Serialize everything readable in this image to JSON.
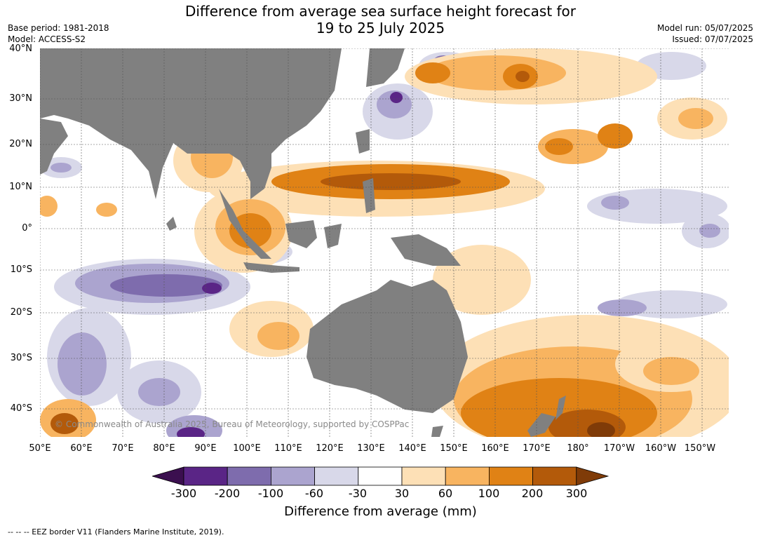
{
  "title": {
    "line1": "Difference from average sea surface height forecast for",
    "line2": "19 to 25 July 2025"
  },
  "meta_left": {
    "base_period": "Base period: 1981-2018",
    "model": "Model: ACCESS-S2"
  },
  "meta_right": {
    "model_run": "Model run: 05/07/2025",
    "issued": "Issued: 07/07/2025"
  },
  "map": {
    "lat_labels": [
      "40°N",
      "30°N",
      "20°N",
      "10°N",
      "0°",
      "10°S",
      "20°S",
      "30°S",
      "40°S"
    ],
    "lon_labels": [
      "50°E",
      "60°E",
      "70°E",
      "80°E",
      "90°E",
      "100°E",
      "110°E",
      "120°E",
      "130°E",
      "140°E",
      "150°E",
      "160°E",
      "170°E",
      "180°",
      "170°W",
      "160°W",
      "150°W"
    ],
    "copyright": "© Commonwealth of Australia 2025, Bureau of Meteorology, supported by COSPPac",
    "land_color": "#808080",
    "ocean_color": "#ffffff"
  },
  "colorbar": {
    "ticks": [
      "-300",
      "-200",
      "-100",
      "-60",
      "-30",
      "30",
      "60",
      "100",
      "200",
      "300"
    ],
    "colors": [
      "#3b0f4f",
      "#5a2586",
      "#7e6cad",
      "#aba4cf",
      "#d8d8e9",
      "#ffffff",
      "#fde0b6",
      "#f8b460",
      "#e08215",
      "#b35a0a",
      "#7f3b08"
    ],
    "title": "Difference from average (mm)"
  },
  "footer": "--  --  -- EEZ border V11 (Flanders Marine Institute, 2019)."
}
